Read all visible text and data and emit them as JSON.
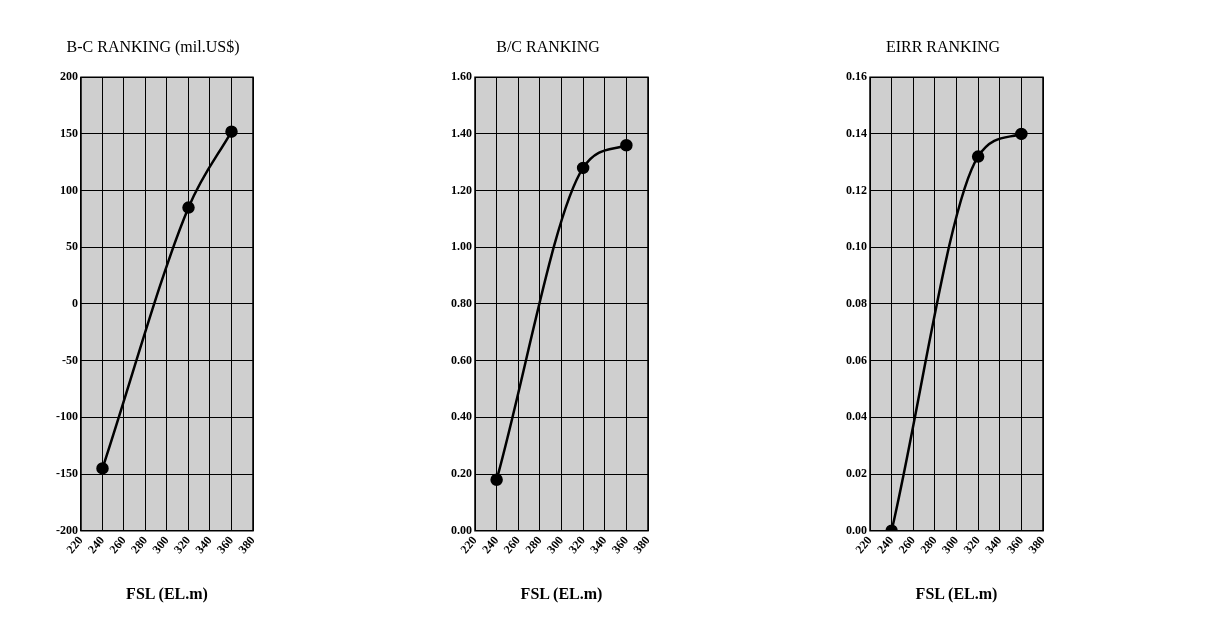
{
  "chart_data": [
    {
      "type": "line",
      "title": "B-C RANKING (mil.US$)",
      "xlabel": "FSL (EL.m)",
      "x": [
        240,
        320,
        360
      ],
      "series": [
        {
          "color": "#000000",
          "values": [
            -145,
            85,
            152
          ]
        }
      ],
      "xlim": [
        220,
        380
      ],
      "xticks": [
        220,
        240,
        260,
        280,
        300,
        320,
        340,
        360,
        380
      ],
      "ylim": [
        -200,
        200
      ],
      "yticks": [
        -200,
        -150,
        -100,
        -50,
        0,
        50,
        100,
        150,
        200
      ],
      "grid": true,
      "legend": false,
      "marker": "circle",
      "line_style": "solid"
    },
    {
      "type": "line",
      "title": "B/C RANKING",
      "xlabel": "FSL (EL.m)",
      "x": [
        240,
        320,
        360
      ],
      "series": [
        {
          "color": "#000000",
          "values": [
            0.18,
            1.28,
            1.36
          ]
        }
      ],
      "xlim": [
        220,
        380
      ],
      "xticks": [
        220,
        240,
        260,
        280,
        300,
        320,
        340,
        360,
        380
      ],
      "ylim": [
        0,
        1.6
      ],
      "yticks": [
        {
          "value": 0,
          "label": "0.00"
        },
        {
          "value": 0.2,
          "label": "0.20"
        },
        {
          "value": 0.4,
          "label": "0.40"
        },
        {
          "value": 0.6,
          "label": "0.60"
        },
        {
          "value": 0.8,
          "label": "0.80"
        },
        {
          "value": 1,
          "label": "1.00"
        },
        {
          "value": 1.2,
          "label": "1.20"
        },
        {
          "value": 1.4,
          "label": "1.40"
        },
        {
          "value": 1.6,
          "label": "1.60"
        }
      ],
      "grid": true,
      "legend": false,
      "marker": "circle",
      "line_style": "solid"
    },
    {
      "type": "line",
      "title": "EIRR RANKING",
      "xlabel": "FSL (EL.m)",
      "x": [
        240,
        320,
        360
      ],
      "series": [
        {
          "color": "#000000",
          "values": [
            0.0,
            0.132,
            0.14
          ]
        }
      ],
      "xlim": [
        220,
        380
      ],
      "xticks": [
        220,
        240,
        260,
        280,
        300,
        320,
        340,
        360,
        380
      ],
      "ylim": [
        0,
        0.16
      ],
      "yticks": [
        {
          "value": 0,
          "label": "0.00"
        },
        {
          "value": 0.02,
          "label": "0.02"
        },
        {
          "value": 0.04,
          "label": "0.04"
        },
        {
          "value": 0.06,
          "label": "0.06"
        },
        {
          "value": 0.08,
          "label": "0.08"
        },
        {
          "value": 0.1,
          "label": "0.10"
        },
        {
          "value": 0.12,
          "label": "0.12"
        },
        {
          "value": 0.14,
          "label": "0.14"
        },
        {
          "value": 0.16,
          "label": "0.16"
        }
      ],
      "grid": true,
      "legend": false,
      "marker": "circle",
      "line_style": "solid"
    }
  ]
}
